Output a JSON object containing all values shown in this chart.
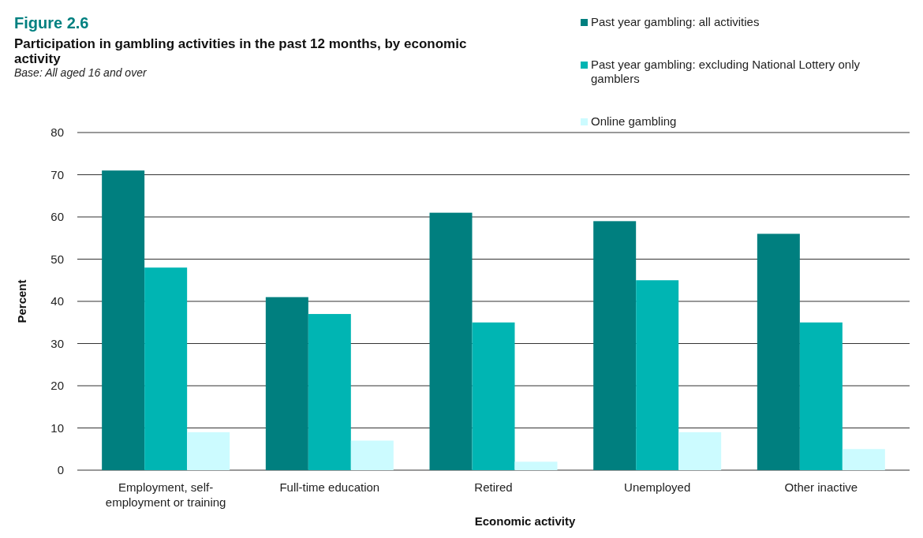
{
  "chart_data": {
    "type": "bar",
    "title": "Figure 2.6",
    "subtitle": "Participation in gambling activities in the past 12 months, by economic activity",
    "annotations": [
      "Base: All aged 16 and over"
    ],
    "xlabel": "Economic activity",
    "ylabel": "Percent",
    "categories": [
      "Employment, self-employment or training",
      "Full-time education",
      "Retired",
      "Unemployed",
      "Other inactive"
    ],
    "series": [
      {
        "name": "Past year gambling: all activities",
        "color": "#007f7f",
        "values": [
          71,
          41,
          61,
          59,
          56
        ]
      },
      {
        "name": "Past year gambling: excluding National Lottery only gamblers",
        "color": "#00b5b3",
        "values": [
          48,
          37,
          35,
          45,
          35
        ]
      },
      {
        "name": "Online gambling",
        "color": "#ccfbff",
        "values": [
          9,
          7,
          2,
          9,
          5
        ]
      }
    ],
    "ylim": [
      0,
      80
    ],
    "yticks": [
      0,
      10,
      20,
      30,
      40,
      50,
      60,
      70,
      80
    ],
    "grid": "y",
    "legend": "top right"
  }
}
